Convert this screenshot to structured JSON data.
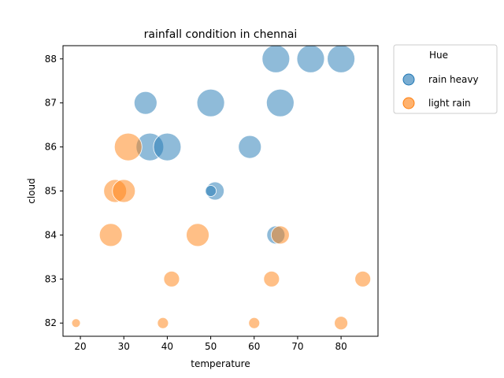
{
  "chart_data": {
    "type": "scatter",
    "title": "rainfall condition in chennai",
    "xlabel": "temperature",
    "ylabel": "cloud",
    "xlim": [
      16,
      88.5
    ],
    "ylim": [
      81.7,
      88.3
    ],
    "xticks": [
      20,
      30,
      40,
      50,
      60,
      70,
      80
    ],
    "yticks": [
      82,
      83,
      84,
      85,
      86,
      87,
      88
    ],
    "grid": false,
    "legend": {
      "title": "Hue",
      "placement": "outside-top-right",
      "entries": [
        "rain heavy",
        "light rain"
      ]
    },
    "colors": {
      "rain heavy": "#1f77b4",
      "light rain": "#ff7f0e"
    },
    "point_alpha": 0.5,
    "size_encoding": "bubble area varies per point (relative size 1-5)",
    "series": [
      {
        "name": "rain heavy",
        "points": [
          {
            "x": 65,
            "y": 88,
            "size": 5
          },
          {
            "x": 73,
            "y": 88,
            "size": 5
          },
          {
            "x": 80,
            "y": 88,
            "size": 5
          },
          {
            "x": 35,
            "y": 87,
            "size": 4
          },
          {
            "x": 50,
            "y": 87,
            "size": 5
          },
          {
            "x": 66,
            "y": 87,
            "size": 5
          },
          {
            "x": 36,
            "y": 86,
            "size": 5
          },
          {
            "x": 40,
            "y": 86,
            "size": 5
          },
          {
            "x": 59,
            "y": 86,
            "size": 4
          },
          {
            "x": 51,
            "y": 85,
            "size": 3
          },
          {
            "x": 50,
            "y": 85,
            "size": 1.5
          },
          {
            "x": 65,
            "y": 84,
            "size": 3
          }
        ]
      },
      {
        "name": "light rain",
        "points": [
          {
            "x": 31,
            "y": 86,
            "size": 5
          },
          {
            "x": 28,
            "y": 85,
            "size": 4
          },
          {
            "x": 30,
            "y": 85,
            "size": 4
          },
          {
            "x": 27,
            "y": 84,
            "size": 4
          },
          {
            "x": 47,
            "y": 84,
            "size": 4
          },
          {
            "x": 66,
            "y": 84,
            "size": 3
          },
          {
            "x": 41,
            "y": 83,
            "size": 2.5
          },
          {
            "x": 64,
            "y": 83,
            "size": 2.5
          },
          {
            "x": 85,
            "y": 83,
            "size": 2.5
          },
          {
            "x": 19,
            "y": 82,
            "size": 1
          },
          {
            "x": 39,
            "y": 82,
            "size": 1.5
          },
          {
            "x": 60,
            "y": 82,
            "size": 1.5
          },
          {
            "x": 80,
            "y": 82,
            "size": 2
          }
        ]
      }
    ]
  }
}
